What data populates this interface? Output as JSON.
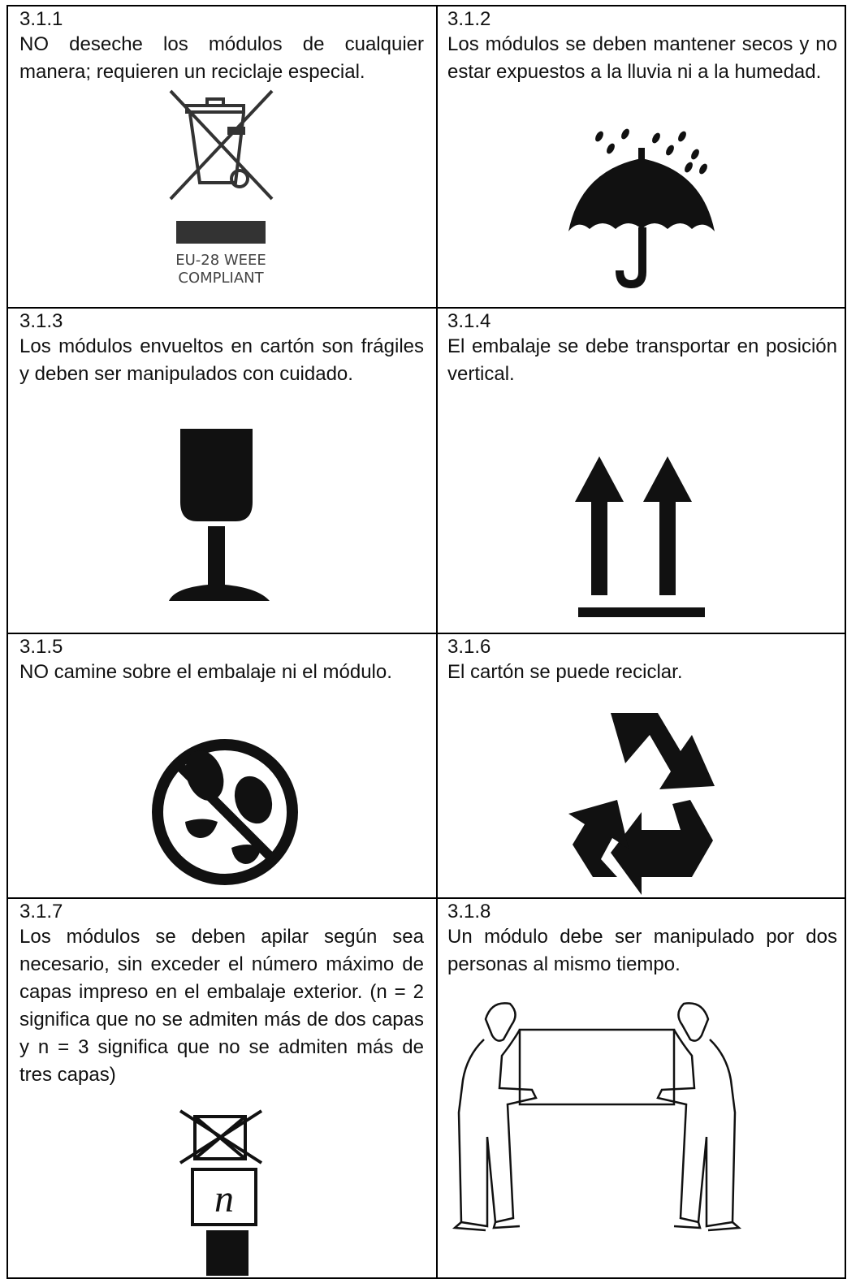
{
  "cells": [
    {
      "number": "3.1.1",
      "text": "NO deseche los módulos de cualquier manera; requieren un reciclaje especial.",
      "icon_text": [
        "EU-28 WEEE",
        "COMPLIANT"
      ]
    },
    {
      "number": "3.1.2",
      "text": "Los módulos se deben mantener secos y no estar expuestos a la lluvia ni a la humedad."
    },
    {
      "number": "3.1.3",
      "text": "Los módulos envueltos en cartón son frágiles y deben ser manipulados con cuidado."
    },
    {
      "number": "3.1.4",
      "text": "El embalaje se debe transportar en posición vertical."
    },
    {
      "number": "3.1.5",
      "text": "NO camine sobre el embalaje ni el módulo."
    },
    {
      "number": "3.1.6",
      "text": "El cartón se puede reciclar."
    },
    {
      "number": "3.1.7",
      "text": "Los módulos se deben apilar según sea necesario, sin exceder el número máximo de capas impreso en el embalaje exterior. (n = 2 significa que no se admiten más de dos capas y n = 3 significa que no se admiten más de tres capas)",
      "icon_text": [
        "n"
      ]
    },
    {
      "number": "3.1.8",
      "text": "Un módulo debe ser manipulado por dos personas al mismo tiempo."
    }
  ]
}
